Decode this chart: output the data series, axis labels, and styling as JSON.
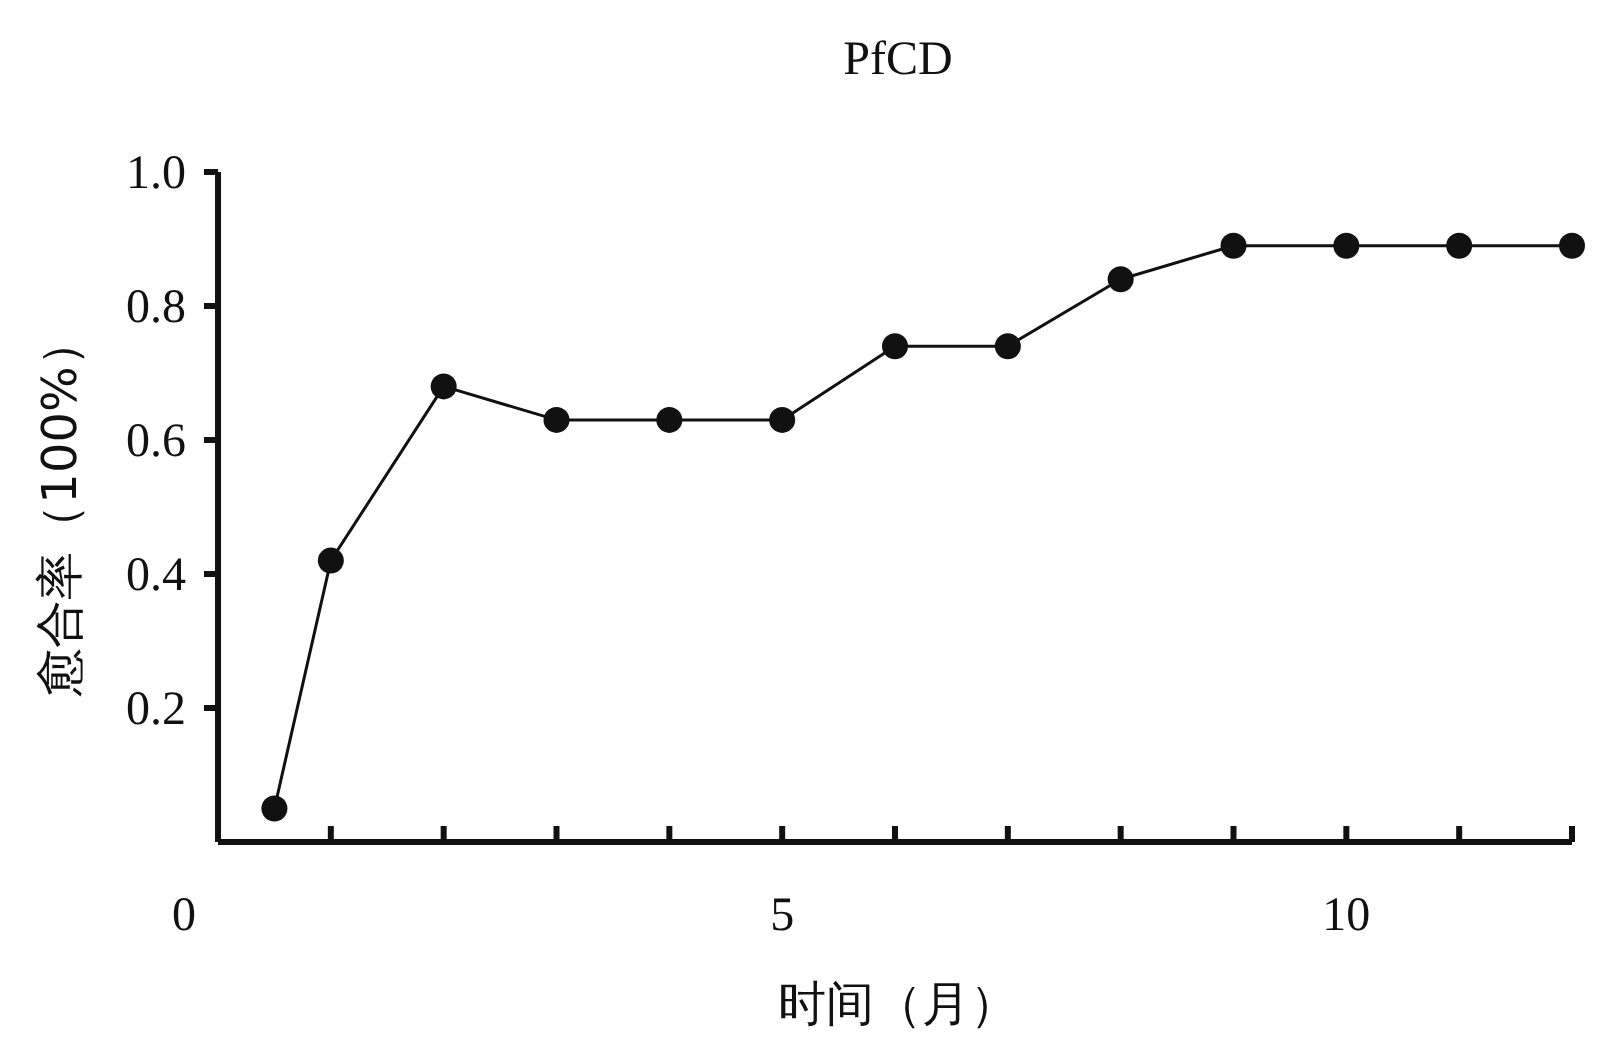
{
  "chart_data": {
    "type": "line",
    "title": "PfCD",
    "xlabel": "时间（月）",
    "ylabel": "愈合率（100%）",
    "x": [
      0.5,
      1,
      2,
      3,
      4,
      5,
      6,
      7,
      8,
      9,
      10,
      11,
      12
    ],
    "series": [
      {
        "color": "#111111",
        "values": [
          0.05,
          0.42,
          0.68,
          0.63,
          0.63,
          0.63,
          0.74,
          0.74,
          0.84,
          0.89,
          0.89,
          0.89,
          0.89
        ]
      }
    ],
    "xlim": [
      0,
      12
    ],
    "ylim": [
      0,
      1
    ],
    "xticks": [
      0,
      {
        "value": 1,
        "label": null
      },
      {
        "value": 2,
        "label": null
      },
      {
        "value": 3,
        "label": null
      },
      {
        "value": 4,
        "label": null
      },
      5,
      {
        "value": 6,
        "label": null
      },
      {
        "value": 7,
        "label": null
      },
      {
        "value": 8,
        "label": null
      },
      {
        "value": 9,
        "label": null
      },
      10,
      {
        "value": 11,
        "label": null
      },
      {
        "value": 12,
        "label": null
      }
    ],
    "yticks": [
      0.2,
      0.4,
      0.6,
      0.8,
      {
        "value": 1,
        "label": "1.0"
      }
    ],
    "grid": false,
    "marker": "circle",
    "line_style": "solid"
  }
}
